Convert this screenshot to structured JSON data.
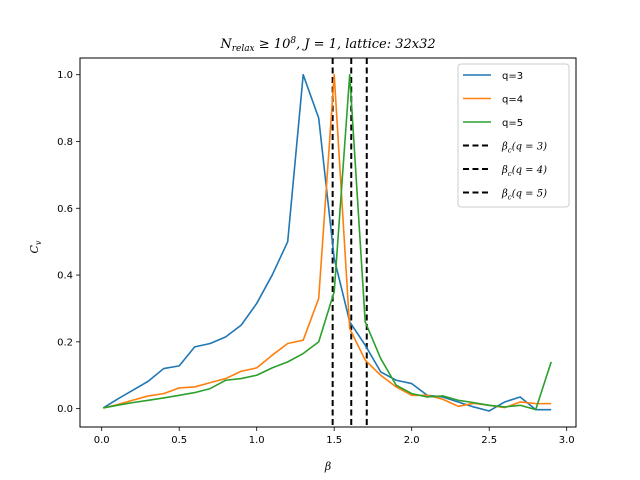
{
  "chart_data": {
    "type": "line",
    "title": "N_relax ≥ 10^8, J = 1, lattice: 32x32",
    "xlabel": "β",
    "ylabel": "C_v",
    "xlim": [
      -0.14,
      3.06
    ],
    "ylim": [
      -0.055,
      1.05
    ],
    "xticks": [
      0.0,
      0.5,
      1.0,
      1.5,
      2.0,
      2.5,
      3.0
    ],
    "xtick_labels": [
      "0.0",
      "0.5",
      "1.0",
      "1.5",
      "2.0",
      "2.5",
      "3.0"
    ],
    "yticks": [
      0.0,
      0.2,
      0.4,
      0.6,
      0.8,
      1.0
    ],
    "ytick_labels": [
      "0.0",
      "0.2",
      "0.4",
      "0.6",
      "0.8",
      "1.0"
    ],
    "grid": false,
    "legend_position": "top-right",
    "series": [
      {
        "name": "q=3",
        "color": "#1f77b4",
        "style": "solid",
        "x": [
          0.01,
          0.1,
          0.2,
          0.3,
          0.4,
          0.5,
          0.6,
          0.7,
          0.8,
          0.9,
          1.0,
          1.1,
          1.2,
          1.3,
          1.4,
          1.5,
          1.6,
          1.7,
          1.8,
          1.9,
          2.0,
          2.1,
          2.2,
          2.3,
          2.4,
          2.5,
          2.6,
          2.7,
          2.8,
          2.9
        ],
        "y": [
          0.002,
          0.028,
          0.055,
          0.082,
          0.12,
          0.128,
          0.185,
          0.195,
          0.215,
          0.25,
          0.315,
          0.4,
          0.5,
          1.0,
          0.87,
          0.45,
          0.26,
          0.19,
          0.11,
          0.085,
          0.075,
          0.04,
          0.035,
          0.02,
          0.005,
          -0.007,
          0.02,
          0.035,
          -0.003,
          -0.003
        ]
      },
      {
        "name": "q=4",
        "color": "#ff7f0e",
        "style": "solid",
        "x": [
          0.01,
          0.1,
          0.2,
          0.3,
          0.4,
          0.5,
          0.6,
          0.7,
          0.8,
          0.9,
          1.0,
          1.1,
          1.2,
          1.3,
          1.4,
          1.5,
          1.6,
          1.7,
          1.8,
          1.9,
          2.0,
          2.1,
          2.2,
          2.3,
          2.4,
          2.5,
          2.6,
          2.7,
          2.8,
          2.9
        ],
        "y": [
          0.002,
          0.012,
          0.025,
          0.038,
          0.045,
          0.062,
          0.065,
          0.078,
          0.09,
          0.112,
          0.122,
          0.16,
          0.195,
          0.205,
          0.33,
          1.0,
          0.24,
          0.145,
          0.1,
          0.065,
          0.04,
          0.04,
          0.028,
          0.007,
          0.016,
          0.01,
          0.003,
          0.02,
          0.015,
          0.015
        ]
      },
      {
        "name": "q=5",
        "color": "#2ca02c",
        "style": "solid",
        "x": [
          0.01,
          0.1,
          0.2,
          0.3,
          0.4,
          0.5,
          0.6,
          0.7,
          0.8,
          0.9,
          1.0,
          1.1,
          1.2,
          1.3,
          1.4,
          1.5,
          1.6,
          1.7,
          1.8,
          1.9,
          2.0,
          2.1,
          2.2,
          2.3,
          2.4,
          2.5,
          2.6,
          2.7,
          2.8,
          2.9
        ],
        "y": [
          0.002,
          0.01,
          0.018,
          0.025,
          0.032,
          0.04,
          0.048,
          0.06,
          0.085,
          0.09,
          0.1,
          0.122,
          0.14,
          0.165,
          0.2,
          0.35,
          1.0,
          0.26,
          0.15,
          0.07,
          0.045,
          0.035,
          0.038,
          0.025,
          0.018,
          0.01,
          0.005,
          0.01,
          -0.003,
          0.14
        ]
      }
    ],
    "vlines": [
      {
        "name": "β_c(q = 3)",
        "x": 1.49,
        "color": "#000000",
        "style": "dashed"
      },
      {
        "name": "β_c(q = 4)",
        "x": 1.61,
        "color": "#000000",
        "style": "dashed"
      },
      {
        "name": "β_c(q = 5)",
        "x": 1.71,
        "color": "#000000",
        "style": "dashed"
      }
    ]
  }
}
